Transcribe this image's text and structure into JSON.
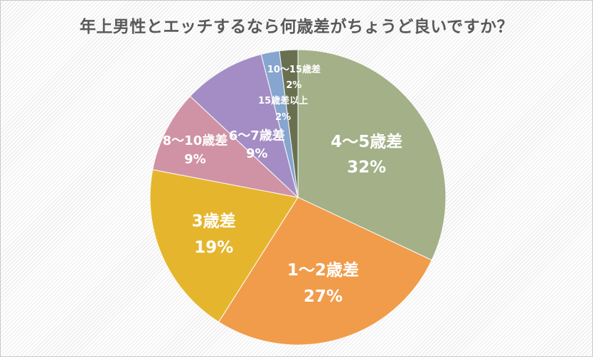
{
  "chart_data": {
    "type": "pie",
    "title": "年上男性とエッチするなら何歳差がちょうど良いですか？",
    "labels": [
      "4〜5歳差",
      "1〜2歳差",
      "3歳差",
      "8〜10歳差",
      "6〜7歳差",
      "10〜15歳差",
      "15歳差以上"
    ],
    "values": [
      32,
      27,
      19,
      9,
      9,
      2,
      2
    ],
    "unit": "%",
    "colors": [
      "#a3b088",
      "#f09c4b",
      "#e5b62d",
      "#d092a5",
      "#a38dc4",
      "#86a5cf",
      "#687050"
    ],
    "start_angle_deg": 0,
    "direction": "clockwise",
    "legend": "none",
    "data_labels": "category-name-and-percent-inside",
    "background": "white-diagonal-stripes",
    "title_color": "#595959",
    "label_text_color": "#ffffff"
  }
}
